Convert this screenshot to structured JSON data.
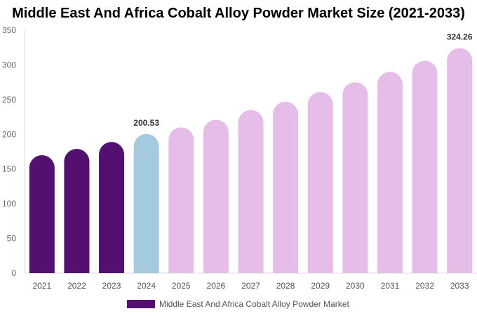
{
  "chart_data": {
    "type": "bar",
    "title": "Middle East And Africa Cobalt Alloy Powder Market Size (2021-2033)",
    "categories": [
      "2021",
      "2022",
      "2023",
      "2024",
      "2025",
      "2026",
      "2027",
      "2028",
      "2029",
      "2030",
      "2031",
      "2032",
      "2033"
    ],
    "series": [
      {
        "name": "Middle East And Africa Cobalt Alloy Powder Market",
        "values": [
          170,
          179,
          189,
          200.53,
          210,
          221,
          235,
          247,
          261,
          275,
          290,
          306,
          324.26
        ]
      }
    ],
    "data_labels": {
      "3": "200.53",
      "12": "324.26"
    },
    "ylim": [
      0,
      350
    ],
    "yticks": [
      0,
      50,
      100,
      150,
      200,
      250,
      300,
      350
    ],
    "grid": false,
    "legend_position": "bottom",
    "colors": {
      "historical": "#541070",
      "current": "#a3cade",
      "forecast": "#e6bde9"
    }
  }
}
